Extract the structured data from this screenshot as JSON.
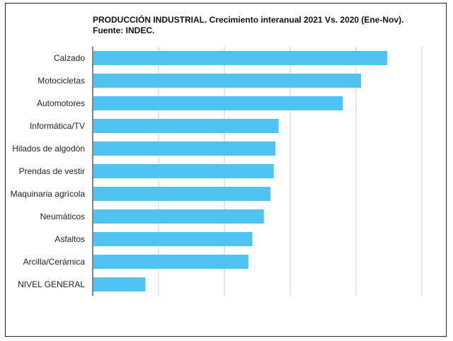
{
  "chart_data": {
    "type": "bar",
    "orientation": "horizontal",
    "title": "PRODUCCIÓN INDUSTRIAL. Crecimiento interanual 2021 Vs. 2020 (Ene-Nov). Fuente: INDEC.",
    "categories": [
      "Calzado",
      "Motocicletas",
      "Automotores",
      "Informática/TV",
      "Hilados de algodón",
      "Prendas de vestir",
      "Maquinaria agrícola",
      "Neumáticos",
      "Asfaltos",
      "Arcilla/Cerámica",
      "NIVEL GENERAL"
    ],
    "values": [
      89.5,
      81.5,
      76,
      56.5,
      55.5,
      55,
      54,
      52,
      48.5,
      47.3,
      16
    ],
    "xlim": [
      0,
      100
    ],
    "grid": true,
    "legend": "none",
    "bar_color": "#4fc3f1",
    "grid_color": "#cccccc"
  }
}
